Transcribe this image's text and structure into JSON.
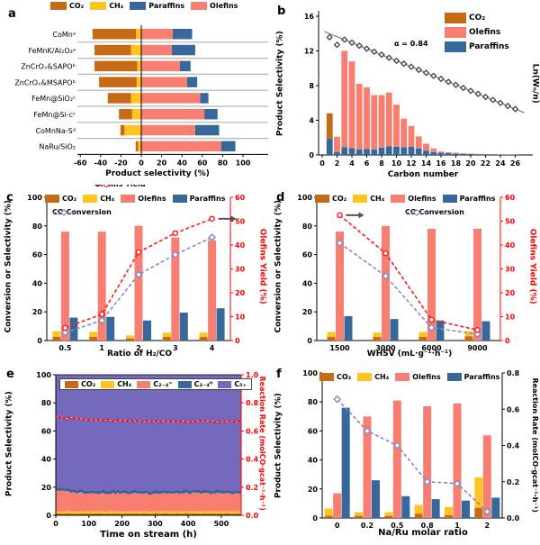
{
  "colors": {
    "co2": "#C76A15",
    "ch4": "#FFC41F",
    "olefins": "#F87E72",
    "paraffins": "#38689B",
    "c5plus": "#7569BE",
    "yield_line": "#FF1A1A",
    "conversion_line": "#8888C6",
    "rate_line": "#FF0000",
    "asf_marker": "#444444",
    "separator": "#B3B3B3",
    "red_axis": "#FF0000",
    "arrow": "#555555"
  },
  "chart_data": [
    {
      "panel_label": "a",
      "type": "bar",
      "subtype": "horizontal-diverging-stacked",
      "xlabel": "Product selectivity (%)",
      "xticks": [
        -60,
        -40,
        -20,
        0,
        20,
        40,
        60,
        80,
        100
      ],
      "xlim": [
        -60,
        100
      ],
      "legend": [
        {
          "label": "CO₂",
          "color_key": "co2"
        },
        {
          "label": "CH₄",
          "color_key": "ch4"
        },
        {
          "label": "Paraffins",
          "color_key": "paraffins"
        },
        {
          "label": "Olefins",
          "color_key": "olefins"
        }
      ],
      "categories": [
        "CoMnᵃ",
        "FeMnK/Al₂O₃ᵃ",
        "ZnCrOₓ&SAPOᵇ",
        "ZnCrOₓ&MSAPOᵇ",
        "FeMn@SiO₂ᶜ",
        "FeMn@Si-cᶜ",
        "CoMnNa-Sᵈ",
        "NaRu/SiO₂"
      ],
      "series": {
        "co2": [
          43,
          36,
          42,
          37,
          23,
          13,
          4,
          2.5
        ],
        "ch4": [
          5,
          10,
          4,
          4.5,
          10,
          9,
          16.5,
          3
        ],
        "olefins": [
          31,
          30,
          38,
          45,
          58,
          62,
          53,
          78.5
        ],
        "paraffins": [
          19,
          23,
          10.5,
          10,
          8,
          13,
          23.5,
          14
        ]
      }
    },
    {
      "panel_label": "b",
      "type": "bar+scatter",
      "xlabel": "Carbon number",
      "ylabel": "Product Selectivity (%)",
      "y2label": "Ln(Wₙ/n)",
      "annotation": "α = 0.84",
      "xticks": [
        0,
        2,
        4,
        6,
        8,
        10,
        12,
        14,
        16,
        18,
        20,
        22,
        24,
        26
      ],
      "yticks": [
        0,
        4,
        8,
        12,
        16
      ],
      "ylim": [
        0,
        16
      ],
      "legend": [
        {
          "label": "CO₂",
          "color_key": "co2"
        },
        {
          "label": "Olefins",
          "color_key": "olefins"
        },
        {
          "label": "Paraffins",
          "color_key": "paraffins"
        }
      ],
      "carbon_numbers": [
        1,
        2,
        3,
        4,
        5,
        6,
        7,
        8,
        9,
        10,
        11,
        12,
        13,
        14,
        15,
        16,
        17,
        18,
        19,
        20,
        21,
        22,
        23,
        24,
        25,
        26
      ],
      "series": {
        "co2_at_n1": 2.9,
        "olefins": [
          0,
          1.75,
          11.1,
          10.0,
          7.55,
          7.1,
          6.25,
          6.05,
          6.2,
          4.85,
          3.3,
          2.4,
          1.4,
          0.8,
          0.42,
          0.15,
          0.12,
          0.1,
          0.08,
          0.06,
          0.05,
          0.04,
          0.03,
          0.02,
          0.02,
          0.01
        ],
        "paraffins": [
          1.9,
          0.35,
          0.9,
          0.8,
          0.65,
          0.7,
          0.65,
          0.85,
          1.0,
          0.95,
          0.9,
          0.95,
          0.75,
          0.5,
          0.33,
          0.25,
          0.2,
          0.15,
          0.12,
          0.1,
          0.08,
          0.06,
          0.05,
          0.04,
          0.03,
          0.02
        ]
      },
      "asf_line": {
        "description": "Anderson-Schulz-Flory ln(Wn/n) scatter, linear decrease"
      }
    },
    {
      "panel_label": "c",
      "type": "bar+line",
      "xlabel": "Ratio of H₂/CO",
      "ylabel": "Conversion or Selectivity (%)",
      "y2label": "Olefins Yield (%)",
      "categories": [
        "0.5",
        "1",
        "2",
        "3",
        "4"
      ],
      "yticks": [
        0,
        20,
        40,
        60,
        80,
        100
      ],
      "ylim": [
        0,
        100
      ],
      "y2ticks": [
        0,
        10,
        20,
        30,
        40,
        50,
        60
      ],
      "y2lim": [
        0,
        60
      ],
      "legend": [
        {
          "label": "CO₂",
          "color_key": "co2"
        },
        {
          "label": "CH₄",
          "color_key": "ch4"
        },
        {
          "label": "Olefins",
          "color_key": "olefins"
        },
        {
          "label": "Paraffins",
          "color_key": "paraffins"
        }
      ],
      "line_legend": [
        {
          "label": "Olefins Yield",
          "color_key": "yield_line",
          "marker": "circle"
        },
        {
          "label": "CO Conversion",
          "color_key": "conversion_line",
          "marker": "diamond"
        }
      ],
      "series": {
        "co2": [
          2.5,
          2.5,
          1.5,
          2.5,
          2.5
        ],
        "ch4": [
          4,
          3.5,
          2,
          3,
          3
        ],
        "olefins": [
          76,
          76,
          80,
          72,
          70
        ],
        "paraffins": [
          16,
          16.5,
          14,
          19.5,
          22.5
        ]
      },
      "lines": {
        "co_conversion": [
          5.5,
          14,
          46,
          60,
          72
        ],
        "olefins_yield": [
          5.3,
          11,
          37,
          45,
          51
        ]
      }
    },
    {
      "panel_label": "d",
      "type": "bar+line",
      "xlabel": "WHSV (mL·g⁻¹·h⁻¹)",
      "ylabel": "Conversion or Selectivity (%)",
      "y2label": "Olefins Yield (%)",
      "categories": [
        "1500",
        "3000",
        "6000",
        "9000"
      ],
      "yticks": [
        0,
        20,
        40,
        60,
        80,
        100
      ],
      "ylim": [
        0,
        100
      ],
      "y2ticks": [
        0,
        10,
        20,
        30,
        40,
        50,
        60
      ],
      "y2lim": [
        0,
        60
      ],
      "legend": [
        {
          "label": "CO₂",
          "color_key": "co2"
        },
        {
          "label": "CH₄",
          "color_key": "ch4"
        },
        {
          "label": "Olefins",
          "color_key": "olefins"
        },
        {
          "label": "Paraffins",
          "color_key": "paraffins"
        }
      ],
      "line_legend": [
        {
          "label": "CO Conversion",
          "color_key": "conversion_line",
          "marker": "diamond"
        }
      ],
      "series": {
        "co2": [
          2.5,
          2.5,
          2.5,
          3
        ],
        "ch4": [
          3.5,
          3,
          3.5,
          3.5
        ],
        "olefins": [
          76,
          80,
          78,
          78
        ],
        "paraffins": [
          17,
          15,
          14,
          13.5
        ]
      },
      "lines": {
        "co_conversion": [
          68,
          45,
          9,
          4.5
        ],
        "olefins_yield": [
          52.5,
          36.5,
          8.7,
          4.4
        ]
      }
    },
    {
      "panel_label": "e",
      "type": "area",
      "xlabel": "Time on stream (h)",
      "ylabel": "Product Selectivity (%)",
      "y2label": "Reaction Rate (molCO·gcat⁻¹·h⁻¹)",
      "xticks": [
        0,
        100,
        200,
        300,
        400,
        500
      ],
      "xlim": [
        0,
        560
      ],
      "yticks": [
        0,
        20,
        40,
        60,
        80,
        100
      ],
      "ylim": [
        0,
        100
      ],
      "y2ticks": [
        "0.0",
        "0.2",
        "0.4",
        "0.6",
        "0.8",
        "1.0"
      ],
      "y2lim": [
        0,
        1
      ],
      "legend": [
        {
          "label": "CO₂",
          "color_key": "co2"
        },
        {
          "label": "CH₄",
          "color_key": "ch4"
        },
        {
          "label": "C₂₋₄⁼",
          "color_key": "olefins"
        },
        {
          "label": "C₂₋₄⁰",
          "color_key": "paraffins"
        },
        {
          "label": "C₅₊",
          "color_key": "c5plus"
        }
      ],
      "layers_mean_selectivity": {
        "co2": 1.2,
        "ch4": 1.7,
        "c24_olefins": 14.5,
        "c24_paraffins": 1.7,
        "c5plus": 80.9
      },
      "rate": {
        "start": 0.705,
        "end": 0.667
      }
    },
    {
      "panel_label": "f",
      "type": "bar+line",
      "xlabel": "Na/Ru molar ratio",
      "ylabel": "Product Selectivity (%)",
      "y2label": "Reaction Rate (molCO·gcat⁻¹·h⁻¹)",
      "categories": [
        "0",
        "0.2",
        "0.5",
        "0.8",
        "1",
        "2"
      ],
      "yticks": [
        0,
        20,
        40,
        60,
        80,
        100
      ],
      "ylim": [
        0,
        100
      ],
      "y2ticks": [
        "0.0",
        "0.2",
        "0.4",
        "0.6",
        "0.8"
      ],
      "y2lim": [
        0,
        0.8
      ],
      "legend": [
        {
          "label": "CO₂",
          "color_key": "co2"
        },
        {
          "label": "CH₄",
          "color_key": "ch4"
        },
        {
          "label": "Olefins",
          "color_key": "olefins"
        },
        {
          "label": "Paraffins",
          "color_key": "paraffins"
        }
      ],
      "series": {
        "co2": [
          1.5,
          1.5,
          1.5,
          3,
          2,
          7
        ],
        "ch4": [
          5,
          2.5,
          2.5,
          6,
          5.5,
          21
        ],
        "olefins": [
          17,
          70,
          81,
          77,
          79,
          57
        ],
        "paraffins": [
          76,
          26,
          15,
          13,
          12,
          14
        ]
      },
      "lines": {
        "reaction_rate": [
          0.655,
          0.48,
          0.4,
          0.2,
          0.19,
          0.035
        ]
      }
    }
  ]
}
